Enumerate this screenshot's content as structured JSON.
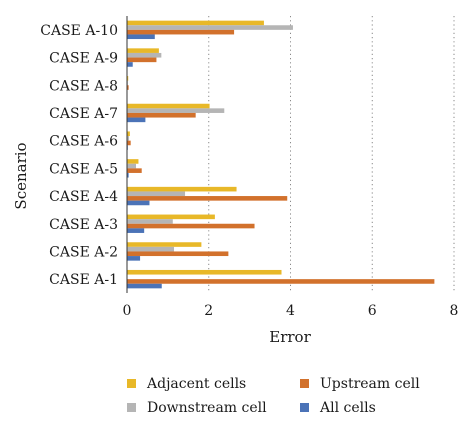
{
  "chart_data": {
    "type": "bar",
    "orientation": "horizontal",
    "categories": [
      "CASE A-1",
      "CASE A-2",
      "CASE A-3",
      "CASE A-4",
      "CASE A-5",
      "CASE A-6",
      "CASE A-7",
      "CASE A-8",
      "CASE A-9",
      "CASE A-10"
    ],
    "series": [
      {
        "name": "Adjacent cells",
        "color": "#E8B828",
        "values": [
          3.78,
          1.82,
          2.15,
          2.68,
          0.28,
          0.07,
          2.02,
          0.03,
          0.78,
          3.35
        ]
      },
      {
        "name": "Downstream cell",
        "color": "#B5B5B5",
        "values": [
          0.0,
          1.15,
          1.12,
          1.42,
          0.22,
          0.05,
          2.38,
          0.02,
          0.84,
          4.06
        ]
      },
      {
        "name": "Upstream cell",
        "color": "#D2712C",
        "values": [
          7.52,
          2.48,
          3.12,
          3.92,
          0.36,
          0.09,
          1.68,
          0.04,
          0.72,
          2.62
        ]
      },
      {
        "name": "All cells",
        "color": "#4B73B7",
        "values": [
          0.85,
          0.32,
          0.42,
          0.55,
          0.04,
          0.02,
          0.45,
          0.01,
          0.14,
          0.68
        ]
      }
    ],
    "xlabel": "Error",
    "ylabel": "Scenario",
    "xlim": [
      0,
      8
    ],
    "xticks": [
      "0",
      "2",
      "4",
      "6",
      "8"
    ],
    "grid": "vertical dotted",
    "legend_position": "bottom"
  }
}
